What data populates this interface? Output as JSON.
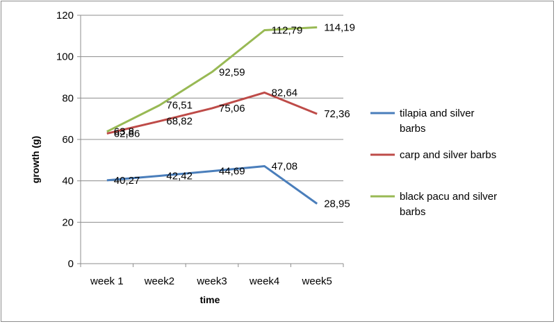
{
  "chart_data": {
    "type": "line",
    "title": "",
    "xlabel": "time",
    "ylabel": "growth (g)",
    "categories": [
      "week 1",
      "week2",
      "week3",
      "week4",
      "week5"
    ],
    "ylim": [
      0,
      120
    ],
    "yticks": [
      0,
      20,
      40,
      60,
      80,
      100,
      120
    ],
    "grid": true,
    "legend_position": "right",
    "series": [
      {
        "name": "tilapia and silver barbs",
        "color": "#4a7ebb",
        "values": [
          40.27,
          42.42,
          44.69,
          47.08,
          28.95
        ],
        "labels": [
          "40,27",
          "42,42",
          "44,69",
          "47,08",
          "28,95"
        ]
      },
      {
        "name": "carp and silver barbs",
        "color": "#be4b48",
        "values": [
          62.86,
          68.82,
          75.06,
          82.64,
          72.36
        ],
        "labels": [
          "62,86",
          "68,82",
          "75,06",
          "82,64",
          "72,36"
        ]
      },
      {
        "name": "black pacu and silver barbs",
        "color": "#98b954",
        "values": [
          63.8,
          76.51,
          92.59,
          112.79,
          114.19
        ],
        "labels": [
          "63,8",
          "76,51",
          "92,59",
          "112,79",
          "114,19"
        ]
      }
    ]
  }
}
